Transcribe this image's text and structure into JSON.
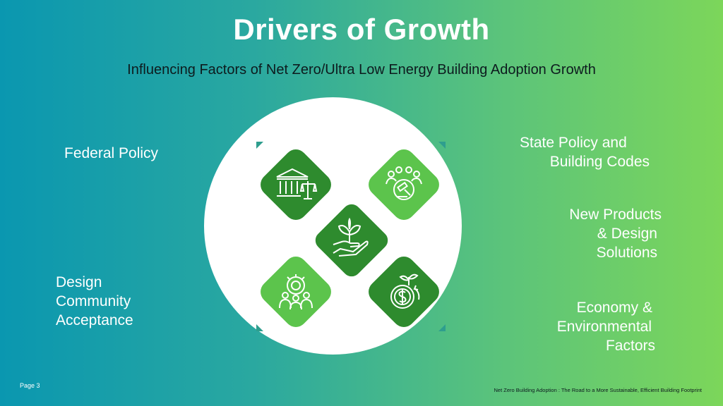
{
  "title": "Drivers of Growth",
  "subtitle": "Influencing Factors of Net Zero/Ultra Low Energy Building Adoption Growth",
  "labels": {
    "federal_policy": "Federal Policy",
    "design_community": [
      "Design",
      "Community",
      "Acceptance"
    ],
    "state_policy": [
      "State Policy and",
      "Building Codes"
    ],
    "new_products": [
      "New Products",
      "& Design",
      "Solutions"
    ],
    "economy": [
      "Economy &",
      "Environmental",
      "Factors"
    ]
  },
  "footer": {
    "page": "Page 3",
    "caption": "Net Zero Building Adoption :  The Road to a More Sustainable, Efficient Building Footprint"
  },
  "icons": {
    "top_left": "courthouse-scales-icon",
    "top_right": "gavel-community-icon",
    "center": "hand-plant-icon",
    "bottom_left": "teamwork-idea-icon",
    "bottom_right": "money-growth-icon"
  },
  "colors": {
    "tile_dark": "#2e8b2e",
    "tile_light": "#5cc44c",
    "gradient_left": "#0a97b0",
    "gradient_right": "#7cd65a"
  }
}
